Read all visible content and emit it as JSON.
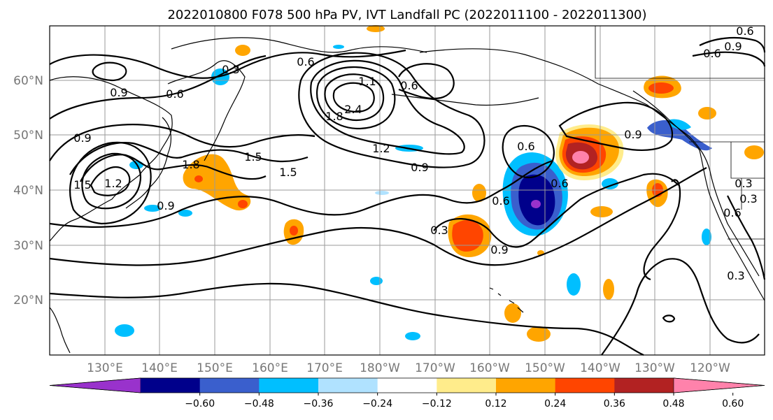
{
  "title": "2022010800 F078 500 hPa PV, IVT Landfall PC (2022011100 - 2022011300)",
  "lat_labels": [
    "60°N",
    "50°N",
    "40°N",
    "30°N",
    "20°N"
  ],
  "lon_labels": [
    "130°E",
    "140°E",
    "150°E",
    "160°E",
    "170°E",
    "180°W",
    "170°W",
    "160°W",
    "150°W",
    "140°W",
    "130°W",
    "120°W"
  ],
  "contour_labels": [
    "0.6",
    "0.3",
    "0.9",
    "0.6",
    "1.1",
    "2.4",
    "0.6",
    "0.9",
    "1.8",
    "1.2",
    "1.5",
    "1.5",
    "1.2",
    "0.9",
    "0.6",
    "0.6",
    "0.6",
    "0.9",
    "0.3",
    "0.9",
    "0.6",
    "0.9",
    "0.6",
    "0.3",
    "0.6",
    "0.3",
    "0.3",
    "1.5",
    "1.8",
    "0.9"
  ],
  "colorbar": {
    "ticks": [
      "−0.60",
      "−0.48",
      "−0.36",
      "−0.24",
      "−0.12",
      "0.12",
      "0.24",
      "0.36",
      "0.48",
      "0.60"
    ],
    "colors": [
      "#9932cc",
      "#00008b",
      "#3a5fcd",
      "#00bfff",
      "#b0e2ff",
      "#ffffff",
      "#ffec8b",
      "#ffa500",
      "#ff4500",
      "#b22222",
      "#ff82ab"
    ]
  },
  "map_data": {
    "projection": "PlateCarree",
    "lon_range": [
      120,
      250
    ],
    "lat_range": [
      10,
      70
    ],
    "gridlines": true
  }
}
